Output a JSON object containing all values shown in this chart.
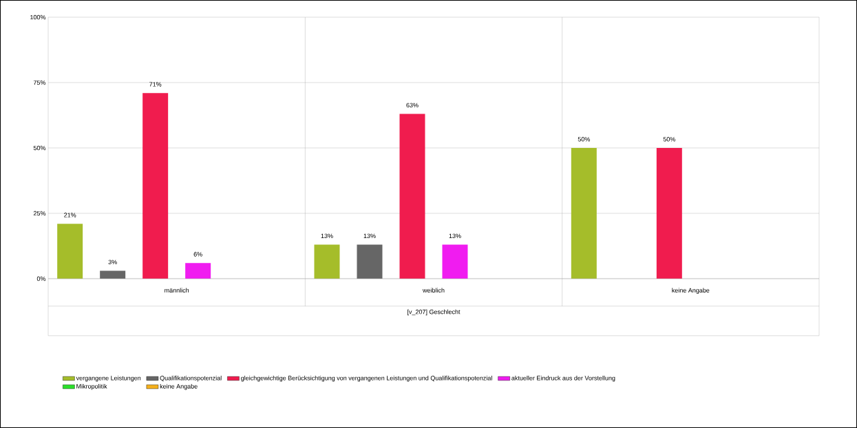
{
  "chart_data": {
    "type": "bar",
    "xlabel": "[v_207] Geschlecht",
    "categories": [
      "männlich",
      "weiblich",
      "keine Angabe"
    ],
    "series": [
      {
        "name": "vergangene Leistungen",
        "color": "#a5bd2a",
        "values": [
          21,
          13,
          50
        ],
        "value_labels": [
          "21%",
          "13%",
          "50%"
        ]
      },
      {
        "name": "Qualifikationspotenzial",
        "color": "#666666",
        "values": [
          3,
          13,
          0
        ],
        "value_labels": [
          "3%",
          "13%",
          null
        ]
      },
      {
        "name": "gleichgewichtige Berücksichtigung von vergangenen Leistungen und Qualifikationspotenzial",
        "color": "#f01c4e",
        "values": [
          71,
          63,
          50
        ],
        "value_labels": [
          "71%",
          "63%",
          "50%"
        ]
      },
      {
        "name": "aktueller Eindruck aus der Vorstellung",
        "color": "#f01cf0",
        "values": [
          6,
          13,
          0
        ],
        "value_labels": [
          "6%",
          "13%",
          null
        ]
      },
      {
        "name": "Mikropolitik",
        "color": "#2be02b",
        "values": [
          0,
          0,
          0
        ],
        "value_labels": [
          null,
          null,
          null
        ]
      },
      {
        "name": "keine Angabe",
        "color": "#f5b01c",
        "values": [
          0,
          0,
          0
        ],
        "value_labels": [
          null,
          null,
          null
        ]
      }
    ],
    "ylim": [
      0,
      100
    ],
    "yticks": [
      {
        "value": 0,
        "label": "0%"
      },
      {
        "value": 25,
        "label": "25%"
      },
      {
        "value": 50,
        "label": "50%"
      },
      {
        "value": 75,
        "label": "75%"
      },
      {
        "value": 100,
        "label": "100%"
      }
    ],
    "grid": "y",
    "legend": "bottom"
  }
}
